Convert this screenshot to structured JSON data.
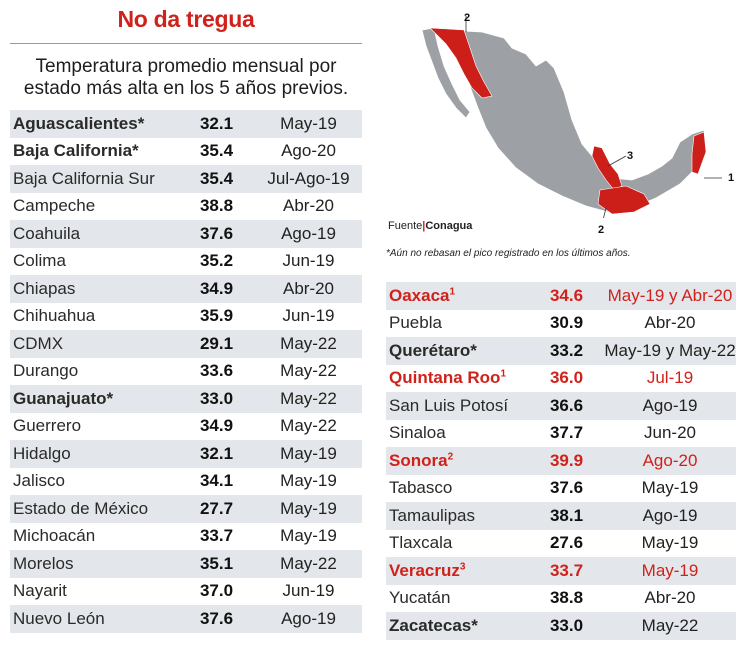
{
  "title": "No da tregua",
  "subtitle": "Temperatura promedio mensual por estado más alta en los 5 años previos.",
  "source_label": "Fuente",
  "source_name": "Conagua",
  "footnote": "*Aún no rebasan el pico registrado en los últimos años.",
  "map_labels": [
    "2",
    "3",
    "1",
    "2"
  ],
  "colors": {
    "accent": "#d0221b",
    "stripe": "#e3e6ea",
    "map_gray": "#9da1a5"
  },
  "left_rows": [
    {
      "name": "Aguascalientes*",
      "value": "32.1",
      "date": "May-19",
      "style": "bold"
    },
    {
      "name": "Baja California*",
      "value": "35.4",
      "date": "Ago-20",
      "style": "bold"
    },
    {
      "name": "Baja California Sur",
      "value": "35.4",
      "date": "Jul-Ago-19",
      "style": ""
    },
    {
      "name": "Campeche",
      "value": "38.8",
      "date": "Abr-20",
      "style": ""
    },
    {
      "name": "Coahuila",
      "value": "37.6",
      "date": "Ago-19",
      "style": ""
    },
    {
      "name": "Colima",
      "value": "35.2",
      "date": "Jun-19",
      "style": ""
    },
    {
      "name": "Chiapas",
      "value": "34.9",
      "date": "Abr-20",
      "style": ""
    },
    {
      "name": "Chihuahua",
      "value": "35.9",
      "date": "Jun-19",
      "style": ""
    },
    {
      "name": "CDMX",
      "value": "29.1",
      "date": "May-22",
      "style": ""
    },
    {
      "name": "Durango",
      "value": "33.6",
      "date": "May-22",
      "style": ""
    },
    {
      "name": "Guanajuato*",
      "value": "33.0",
      "date": "May-22",
      "style": "bold"
    },
    {
      "name": "Guerrero",
      "value": "34.9",
      "date": "May-22",
      "style": ""
    },
    {
      "name": "Hidalgo",
      "value": "32.1",
      "date": "May-19",
      "style": ""
    },
    {
      "name": "Jalisco",
      "value": "34.1",
      "date": "May-19",
      "style": ""
    },
    {
      "name": "Estado de México",
      "value": "27.7",
      "date": "May-19",
      "style": ""
    },
    {
      "name": "Michoacán",
      "value": "33.7",
      "date": "May-19",
      "style": ""
    },
    {
      "name": "Morelos",
      "value": "35.1",
      "date": "May-22",
      "style": ""
    },
    {
      "name": "Nayarit",
      "value": "37.0",
      "date": "Jun-19",
      "style": ""
    },
    {
      "name": "Nuevo León",
      "value": "37.6",
      "date": "Ago-19",
      "style": ""
    }
  ],
  "right_rows": [
    {
      "name": "Oaxaca",
      "sup": "1",
      "value": "34.6",
      "date": "May-19 y Abr-20",
      "style": "red"
    },
    {
      "name": "Puebla",
      "value": "30.9",
      "date": "Abr-20",
      "style": ""
    },
    {
      "name": "Querétaro*",
      "value": "33.2",
      "date": "May-19 y May-22",
      "style": "bold"
    },
    {
      "name": "Quintana Roo",
      "sup": "1",
      "value": "36.0",
      "date": "Jul-19",
      "style": "red"
    },
    {
      "name": "San Luis Potosí",
      "value": "36.6",
      "date": "Ago-19",
      "style": ""
    },
    {
      "name": "Sinaloa",
      "value": "37.7",
      "date": "Jun-20",
      "style": ""
    },
    {
      "name": "Sonora",
      "sup": "2",
      "value": "39.9",
      "date": "Ago-20",
      "style": "red"
    },
    {
      "name": "Tabasco",
      "value": "37.6",
      "date": "May-19",
      "style": ""
    },
    {
      "name": "Tamaulipas",
      "value": "38.1",
      "date": "Ago-19",
      "style": ""
    },
    {
      "name": "Tlaxcala",
      "value": "27.6",
      "date": "May-19",
      "style": ""
    },
    {
      "name": "Veracruz",
      "sup": "3",
      "value": "33.7",
      "date": "May-19",
      "style": "red"
    },
    {
      "name": "Yucatán",
      "value": "38.8",
      "date": "Abr-20",
      "style": ""
    },
    {
      "name": "Zacatecas*",
      "value": "33.0",
      "date": "May-22",
      "style": "bold"
    }
  ]
}
